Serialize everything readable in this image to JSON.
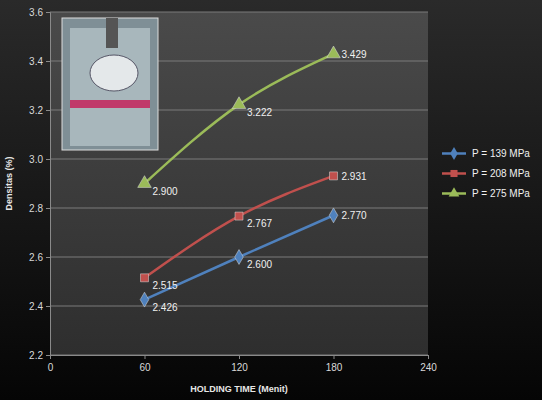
{
  "chart_data": {
    "type": "line",
    "x_label": "HOLDING TIME (Menit)",
    "y_label": "Densitas (%)",
    "x": [
      60,
      120,
      180
    ],
    "series": [
      {
        "name": "P = 139 MPa",
        "color": "#4f81bd",
        "marker": "diamond",
        "values": [
          2.426,
          2.6,
          2.77
        ],
        "value_labels": [
          "2.426",
          "2.600",
          "2.770"
        ]
      },
      {
        "name": "P = 208 MPa",
        "color": "#c0504d",
        "marker": "square",
        "values": [
          2.515,
          2.767,
          2.931
        ],
        "value_labels": [
          "2.515",
          "2.767",
          "2.931"
        ]
      },
      {
        "name": "P = 275 MPa",
        "color": "#9bbb59",
        "marker": "triangle",
        "values": [
          2.9,
          3.222,
          3.429
        ],
        "value_labels": [
          "2.900",
          "3.222",
          "3.429"
        ]
      }
    ],
    "xlim": [
      0,
      240
    ],
    "xticks": [
      0,
      60,
      120,
      180,
      240
    ],
    "ylim": [
      2.2,
      3.6
    ],
    "yticks": [
      2.2,
      2.4,
      2.6,
      2.8,
      {
        "value": 3,
        "label": "3.0"
      },
      3.2,
      3.4,
      3.6
    ],
    "grid": true,
    "data_labels": true,
    "legend": "right",
    "line_style": "solid"
  }
}
